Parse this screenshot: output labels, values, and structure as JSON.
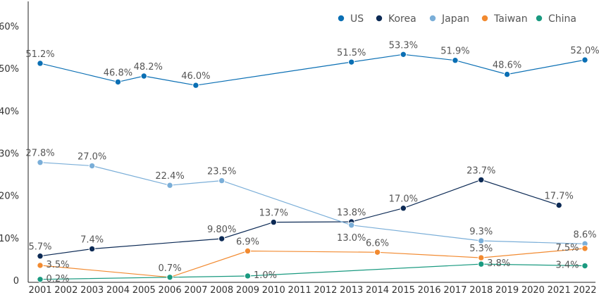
{
  "chart_data": {
    "type": "line",
    "title": "",
    "xlabel": "",
    "ylabel": "",
    "x": [
      2001,
      2002,
      2003,
      2004,
      2005,
      2006,
      2007,
      2008,
      2009,
      2010,
      2011,
      2012,
      2013,
      2014,
      2015,
      2016,
      2017,
      2018,
      2019,
      2020,
      2021,
      2022
    ],
    "x_tick_labels": [
      "2001",
      "2002",
      "2003",
      "2004",
      "2005",
      "2006",
      "2007",
      "2008",
      "2009",
      "2010",
      "2011",
      "2012",
      "2013",
      "2014",
      "2015",
      "2016",
      "2017",
      "2018",
      "2019",
      "2020",
      "2021",
      "2022"
    ],
    "ylim": [
      0,
      60
    ],
    "y_ticks": [
      0,
      10,
      20,
      30,
      40,
      50,
      60
    ],
    "y_tick_labels": [
      "0",
      "10%",
      "20%",
      "30%",
      "40%",
      "50%",
      "60%"
    ],
    "legend_position": "top-right",
    "series": [
      {
        "name": "US",
        "color": "#0a6fb4",
        "points": [
          {
            "x": 2001,
            "y": 51.2,
            "label": "51.2%"
          },
          {
            "x": 2004,
            "y": 46.8,
            "label": "46.8%"
          },
          {
            "x": 2005,
            "y": 48.2,
            "label": "48.2%"
          },
          {
            "x": 2007,
            "y": 46.0,
            "label": "46.0%"
          },
          {
            "x": 2013,
            "y": 51.5,
            "label": "51.5%"
          },
          {
            "x": 2015,
            "y": 53.3,
            "label": "53.3%"
          },
          {
            "x": 2017,
            "y": 51.9,
            "label": "51.9%"
          },
          {
            "x": 2019,
            "y": 48.6,
            "label": "48.6%"
          },
          {
            "x": 2022,
            "y": 52.0,
            "label": "52.0%"
          }
        ]
      },
      {
        "name": "Korea",
        "color": "#0c2a55",
        "points": [
          {
            "x": 2001,
            "y": 5.7,
            "label": "5.7%"
          },
          {
            "x": 2003,
            "y": 7.4,
            "label": "7.4%"
          },
          {
            "x": 2008,
            "y": 9.8,
            "label": "9.80%"
          },
          {
            "x": 2010,
            "y": 13.7,
            "label": "13.7%"
          },
          {
            "x": 2013,
            "y": 13.8,
            "label": "13.8%"
          },
          {
            "x": 2015,
            "y": 17.0,
            "label": "17.0%"
          },
          {
            "x": 2018,
            "y": 23.7,
            "label": "23.7%"
          },
          {
            "x": 2021,
            "y": 17.7,
            "label": "17.7%"
          }
        ]
      },
      {
        "name": "Japan",
        "color": "#7aaed8",
        "points": [
          {
            "x": 2001,
            "y": 27.8,
            "label": "27.8%"
          },
          {
            "x": 2003,
            "y": 27.0,
            "label": "27.0%"
          },
          {
            "x": 2006,
            "y": 22.4,
            "label": "22.4%"
          },
          {
            "x": 2008,
            "y": 23.5,
            "label": "23.5%"
          },
          {
            "x": 2013,
            "y": 13.0,
            "label": "13.0%"
          },
          {
            "x": 2018,
            "y": 9.3,
            "label": "9.3%"
          },
          {
            "x": 2022,
            "y": 8.6,
            "label": "8.6%"
          }
        ]
      },
      {
        "name": "Taiwan",
        "color": "#f28a30",
        "points": [
          {
            "x": 2001,
            "y": 3.5,
            "label": "3.5%"
          },
          {
            "x": 2006,
            "y": 0.7,
            "label": "0.7%"
          },
          {
            "x": 2009,
            "y": 6.9,
            "label": "6.9%"
          },
          {
            "x": 2014,
            "y": 6.6,
            "label": "6.6%"
          },
          {
            "x": 2018,
            "y": 5.3,
            "label": "5.3%"
          },
          {
            "x": 2022,
            "y": 7.5,
            "label": "7.5%"
          }
        ]
      },
      {
        "name": "China",
        "color": "#1a9a80",
        "points": [
          {
            "x": 2001,
            "y": 0.2,
            "label": "0.2%"
          },
          {
            "x": 2006,
            "y": 0.7,
            "label": ""
          },
          {
            "x": 2009,
            "y": 1.0,
            "label": "1.0%"
          },
          {
            "x": 2018,
            "y": 3.8,
            "label": "3.8%"
          },
          {
            "x": 2022,
            "y": 3.4,
            "label": "3.4%"
          }
        ]
      }
    ]
  }
}
